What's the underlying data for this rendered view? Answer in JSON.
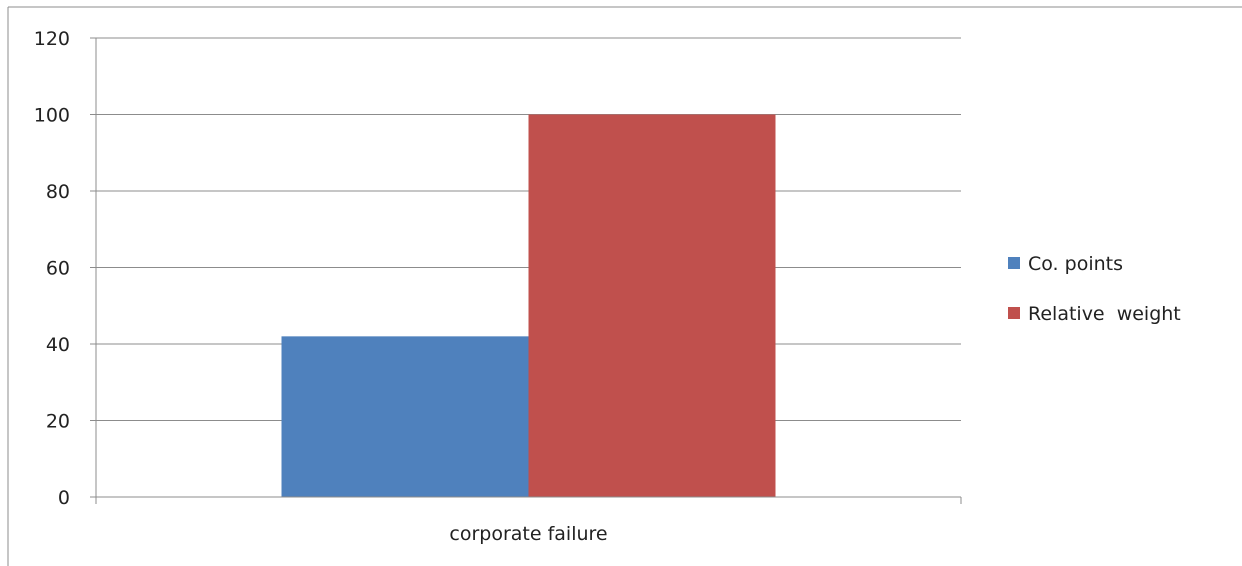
{
  "chart_data": {
    "type": "bar",
    "categories": [
      "corporate failure"
    ],
    "series": [
      {
        "name": "Co. points",
        "values": [
          42
        ],
        "color": "#4f81bd"
      },
      {
        "name": "Relative  weight",
        "values": [
          100
        ],
        "color": "#c0504d"
      }
    ],
    "ylim": [
      0,
      120
    ],
    "yticks": [
      0,
      20,
      40,
      60,
      80,
      100,
      120
    ],
    "title": "",
    "xlabel": "",
    "ylabel": "",
    "grid": true,
    "legend_position": "right"
  }
}
